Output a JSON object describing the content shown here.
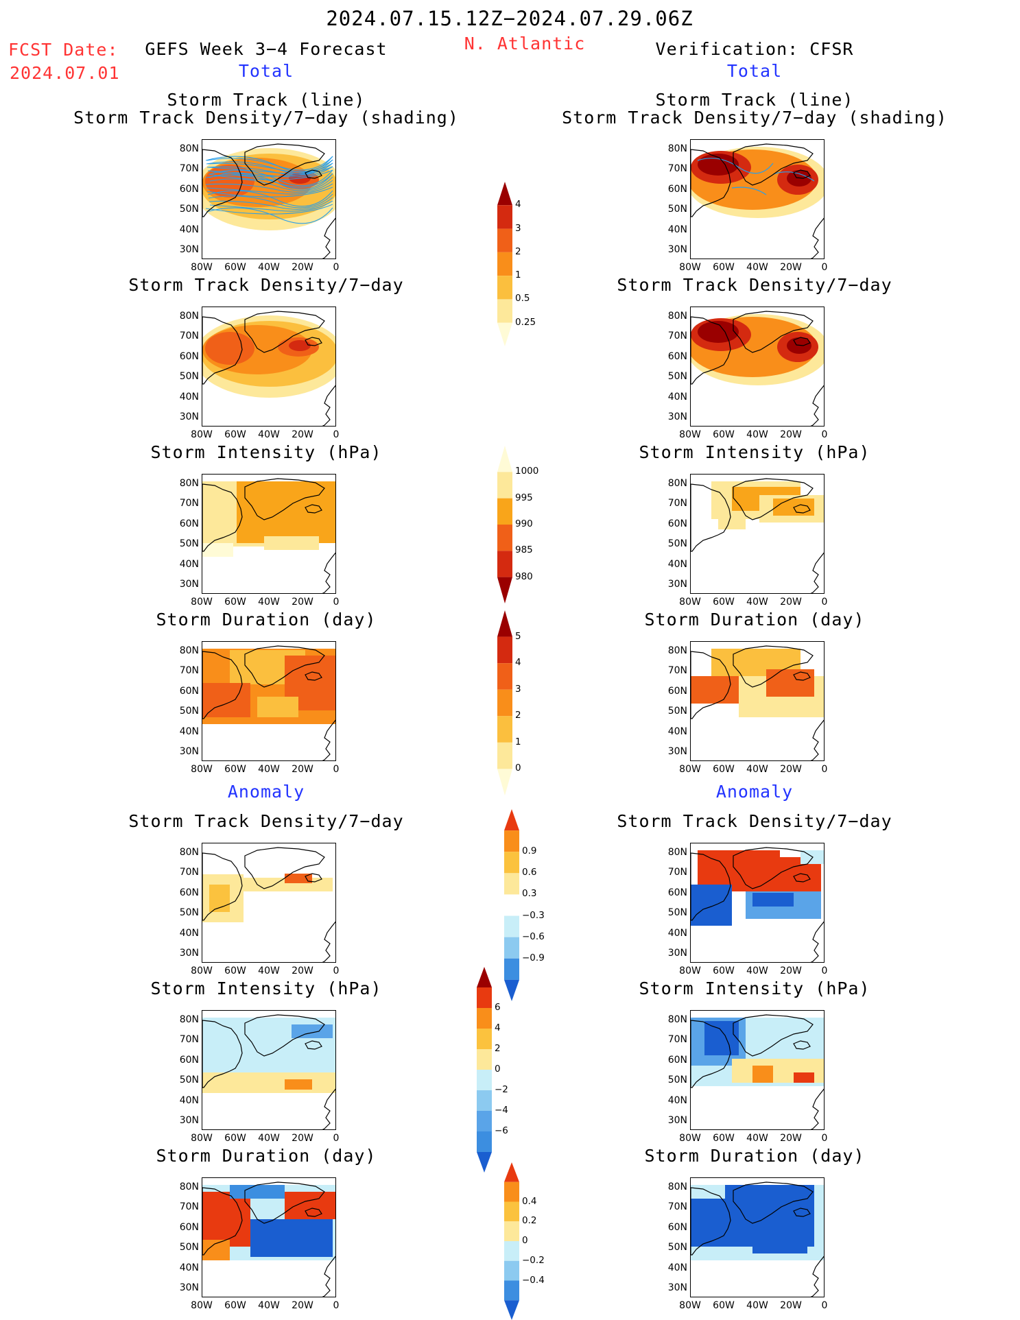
{
  "header": {
    "period": "2024.07.15.12Z−2024.07.29.06Z",
    "fcst_label": "FCST Date:",
    "fcst_date": "2024.07.01",
    "model": "GEFS Week 3−4 Forecast",
    "region": "N. Atlantic",
    "verification": "Verification: CFSR"
  },
  "sections": {
    "total": "Total",
    "anomaly": "Anomaly"
  },
  "panel_titles": {
    "track_line": "Storm Track (line)",
    "track_shading": "Storm Track Density/7−day (shading)",
    "density": "Storm Track Density/7−day",
    "intensity": "Storm Intensity (hPa)",
    "duration": "Storm Duration (day)"
  },
  "axes": {
    "lat_labels": [
      "80N",
      "70N",
      "60N",
      "50N",
      "40N",
      "30N"
    ],
    "lon_labels": [
      "80W",
      "60W",
      "40W",
      "20W",
      "0"
    ]
  },
  "colorbars": [
    {
      "name": "density-total",
      "labels": [
        "4",
        "3",
        "2",
        "1",
        "0.5",
        "0.25"
      ],
      "colors": [
        "#9a0000",
        "#d42a10",
        "#f06018",
        "#f98e1a",
        "#fbbf3e",
        "#fde89a",
        "#fffbd6"
      ]
    },
    {
      "name": "intensity-total",
      "labels": [
        "1000",
        "995",
        "990",
        "985",
        "980"
      ],
      "colors": [
        "#fffbd6",
        "#fde89a",
        "#f9a51a",
        "#f06018",
        "#d42a10",
        "#9a0000"
      ]
    },
    {
      "name": "duration-total",
      "labels": [
        "5",
        "4",
        "3",
        "2",
        "1",
        "0"
      ],
      "colors": [
        "#9a0000",
        "#d42a10",
        "#f06018",
        "#f98e1a",
        "#fbbf3e",
        "#fde89a",
        "#fffbd6"
      ]
    },
    {
      "name": "density-anom",
      "labels": [
        "0.9",
        "0.6",
        "0.3",
        "−0.3",
        "−0.6",
        "−0.9"
      ],
      "colors": [
        "#e83a10",
        "#f98e1a",
        "#fbc23e",
        "#fde89a",
        "#ffffff",
        "#c8eef8",
        "#8ccaf0",
        "#3c8ee0",
        "#1a5ed0"
      ]
    },
    {
      "name": "intensity-anom",
      "labels": [
        "6",
        "4",
        "2",
        "0",
        "−2",
        "−4",
        "−6"
      ],
      "colors": [
        "#9a0000",
        "#e83a10",
        "#f98e1a",
        "#fbc23e",
        "#fde89a",
        "#c8eef8",
        "#8ccaf0",
        "#5aa4e8",
        "#3c8ee0",
        "#1a5ed0"
      ]
    },
    {
      "name": "duration-anom",
      "labels": [
        "0.4",
        "0.2",
        "0",
        "−0.2",
        "−0.4"
      ],
      "colors": [
        "#e83a10",
        "#f98e1a",
        "#fbc23e",
        "#fde89a",
        "#c8eef8",
        "#8ccaf0",
        "#3c8ee0",
        "#1a5ed0"
      ]
    }
  ]
}
